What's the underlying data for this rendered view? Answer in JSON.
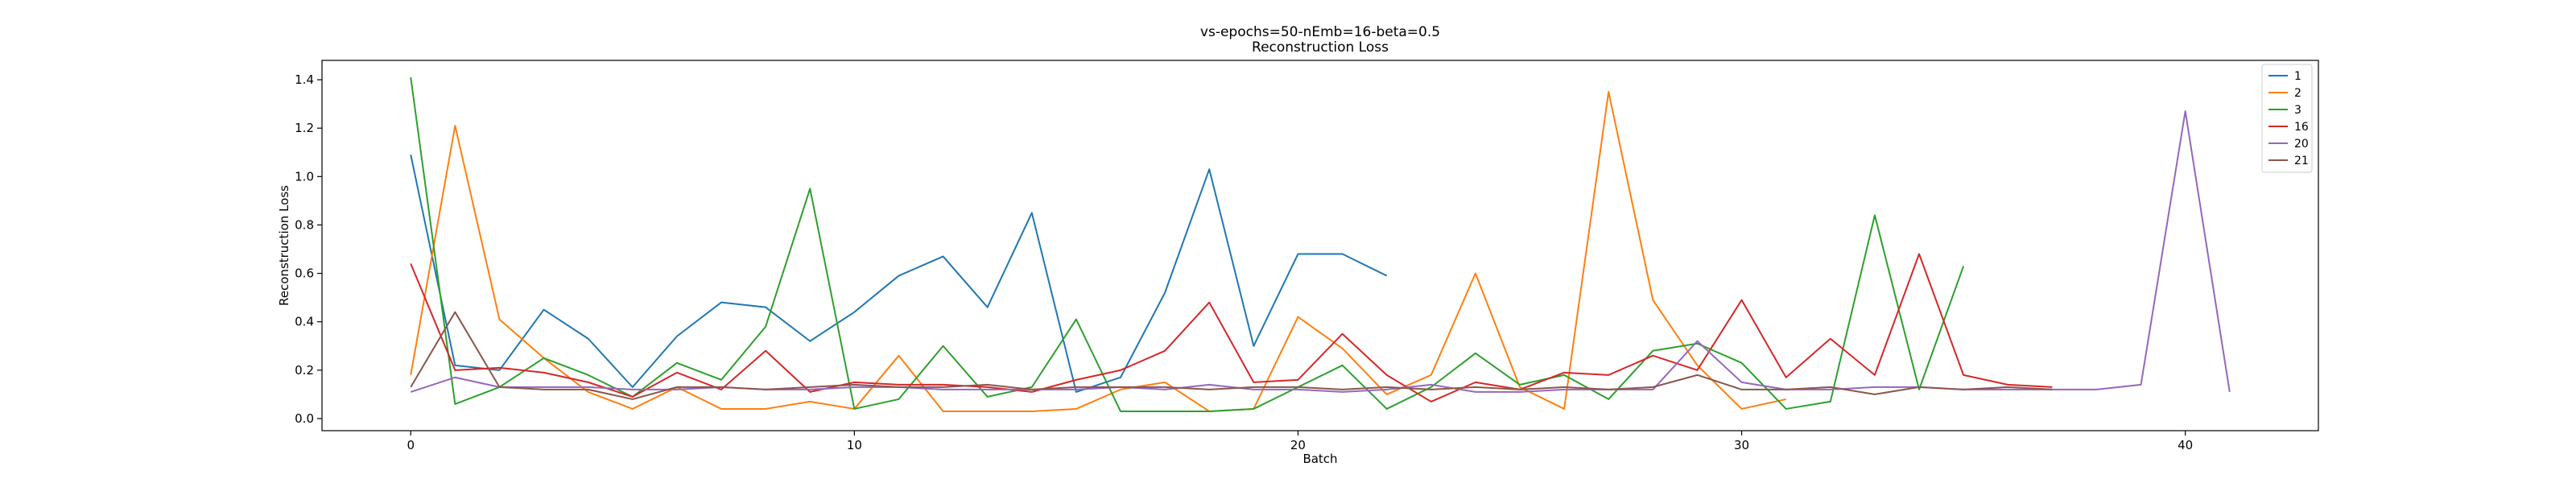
{
  "chart_data": {
    "type": "line",
    "title": "vs-epochs=50-nEmb=16-beta=0.5",
    "subtitle": "Reconstruction Loss",
    "xlabel": "Batch",
    "ylabel": "Reconstruction Loss",
    "xlim": [
      -2,
      43
    ],
    "ylim": [
      -0.05,
      1.48
    ],
    "xticks": [
      0,
      10,
      20,
      30,
      40
    ],
    "yticks": [
      0.0,
      0.2,
      0.4,
      0.6,
      0.8,
      1.0,
      1.2,
      1.4
    ],
    "ytick_labels": [
      "0.0",
      "0.2",
      "0.4",
      "0.6",
      "0.8",
      "1.0",
      "1.2",
      "1.4"
    ],
    "grid": false,
    "legend_position": "top-right",
    "series": [
      {
        "name": "1",
        "color": "#1f77b4",
        "values": [
          1.09,
          0.22,
          0.2,
          0.45,
          0.33,
          0.13,
          0.34,
          0.48,
          0.46,
          0.32,
          0.44,
          0.59,
          0.67,
          0.46,
          0.85,
          0.11,
          0.17,
          0.52,
          1.03,
          0.3,
          0.68,
          0.68,
          0.59
        ]
      },
      {
        "name": "2",
        "color": "#ff7f0e",
        "values": [
          0.18,
          1.21,
          0.41,
          0.25,
          0.11,
          0.04,
          0.13,
          0.04,
          0.04,
          0.07,
          0.04,
          0.26,
          0.03,
          0.03,
          0.03,
          0.04,
          0.12,
          0.15,
          0.03,
          0.04,
          0.42,
          0.29,
          0.1,
          0.18,
          0.6,
          0.13,
          0.04,
          1.35,
          0.49,
          0.22,
          0.04,
          0.08
        ]
      },
      {
        "name": "3",
        "color": "#2ca02c",
        "values": [
          1.41,
          0.06,
          0.13,
          0.25,
          0.18,
          0.09,
          0.23,
          0.16,
          0.38,
          0.95,
          0.04,
          0.08,
          0.3,
          0.09,
          0.13,
          0.41,
          0.03,
          0.03,
          0.03,
          0.04,
          0.13,
          0.22,
          0.04,
          0.13,
          0.27,
          0.14,
          0.18,
          0.08,
          0.28,
          0.31,
          0.23,
          0.04,
          0.07,
          0.84,
          0.12,
          0.63
        ]
      },
      {
        "name": "16",
        "color": "#d62728",
        "values": [
          0.64,
          0.2,
          0.21,
          0.19,
          0.15,
          0.09,
          0.19,
          0.12,
          0.28,
          0.11,
          0.15,
          0.14,
          0.14,
          0.13,
          0.11,
          0.16,
          0.2,
          0.28,
          0.48,
          0.15,
          0.16,
          0.35,
          0.18,
          0.07,
          0.15,
          0.12,
          0.19,
          0.18,
          0.26,
          0.2,
          0.49,
          0.17,
          0.33,
          0.18,
          0.68,
          0.18,
          0.14,
          0.13
        ]
      },
      {
        "name": "20",
        "color": "#9467bd",
        "values": [
          0.11,
          0.17,
          0.13,
          0.13,
          0.13,
          0.12,
          0.12,
          0.13,
          0.12,
          0.12,
          0.13,
          0.13,
          0.12,
          0.12,
          0.12,
          0.12,
          0.13,
          0.12,
          0.14,
          0.12,
          0.12,
          0.11,
          0.12,
          0.14,
          0.11,
          0.11,
          0.12,
          0.12,
          0.12,
          0.32,
          0.15,
          0.12,
          0.12,
          0.13,
          0.13,
          0.12,
          0.12,
          0.12,
          0.12,
          0.14,
          1.27,
          0.11
        ]
      },
      {
        "name": "21",
        "color": "#8c564b",
        "values": [
          0.13,
          0.44,
          0.13,
          0.12,
          0.12,
          0.08,
          0.13,
          0.13,
          0.12,
          0.13,
          0.14,
          0.13,
          0.13,
          0.14,
          0.12,
          0.13,
          0.13,
          0.13,
          0.12,
          0.13,
          0.13,
          0.12,
          0.13,
          0.12,
          0.13,
          0.12,
          0.13,
          0.12,
          0.13,
          0.18,
          0.12,
          0.12,
          0.13,
          0.1,
          0.13,
          0.12,
          0.13,
          0.12
        ]
      }
    ]
  }
}
